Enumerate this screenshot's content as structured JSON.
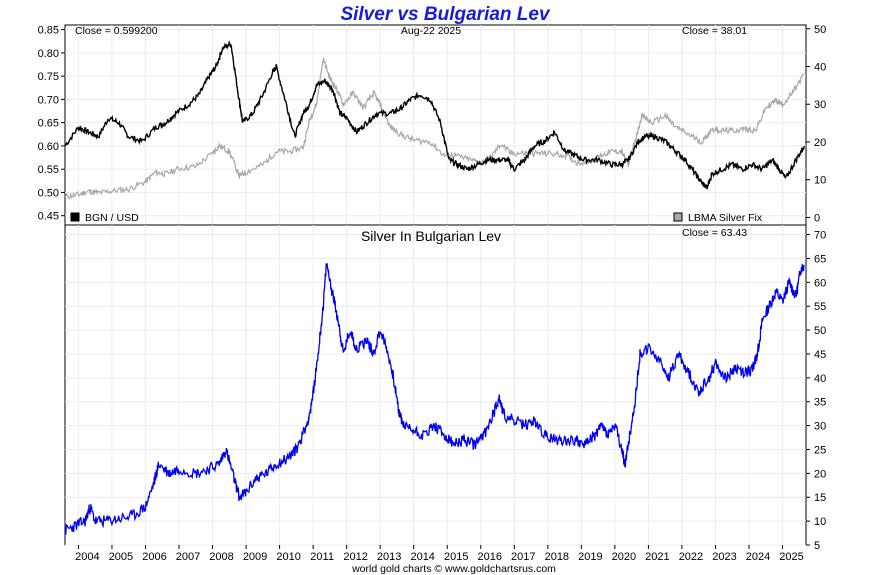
{
  "title": "Silver vs Bulgarian Lev",
  "footer": "world gold charts © www.goldchartsrus.com",
  "colors": {
    "lev": "#000000",
    "silver_usd": "#a8a8a8",
    "silver_bgn": "#0000ee",
    "title": "#1a1adb",
    "grid": "#e8ecf4"
  },
  "chart_data": [
    {
      "type": "line",
      "panel": "top",
      "title": "",
      "date_label": "Aug-22  2025",
      "close_left": "Close = 0.599200",
      "close_right": "Close = 38.01",
      "legend": [
        {
          "label": "BGN / USD",
          "color": "#000000",
          "placement": "bottom-left"
        },
        {
          "label": "LBMA Silver Fix",
          "color": "#a8a8a8",
          "placement": "bottom-right"
        }
      ],
      "left_axis": {
        "ylim": [
          0.43,
          0.86
        ],
        "ticks": [
          "0.85",
          "0.80",
          "0.75",
          "0.70",
          "0.65",
          "0.60",
          "0.55",
          "0.50",
          "0.45"
        ]
      },
      "right_axis": {
        "ylim": [
          -2,
          51
        ],
        "ticks": [
          "50",
          "40",
          "30",
          "20",
          "10",
          "0"
        ]
      },
      "series": [
        {
          "name": "BGN / USD",
          "axis": "left",
          "x": [
            2003.6,
            2004.0,
            2004.3,
            2004.6,
            2004.9,
            2005.2,
            2005.5,
            2005.9,
            2006.3,
            2006.6,
            2006.9,
            2007.3,
            2007.6,
            2007.9,
            2008.1,
            2008.3,
            2008.55,
            2008.75,
            2008.9,
            2009.2,
            2009.5,
            2009.8,
            2009.9,
            2010.2,
            2010.45,
            2010.7,
            2010.9,
            2011.1,
            2011.35,
            2011.6,
            2011.8,
            2012.0,
            2012.3,
            2012.6,
            2012.9,
            2013.3,
            2013.6,
            2013.9,
            2014.2,
            2014.5,
            2014.8,
            2015.05,
            2015.3,
            2015.6,
            2015.9,
            2016.2,
            2016.5,
            2016.8,
            2017.0,
            2017.3,
            2017.6,
            2017.9,
            2018.2,
            2018.5,
            2018.8,
            2019.1,
            2019.5,
            2019.9,
            2020.2,
            2020.4,
            2020.7,
            2020.9,
            2021.2,
            2021.5,
            2021.8,
            2022.1,
            2022.4,
            2022.6,
            2022.75,
            2022.9,
            2023.2,
            2023.5,
            2023.8,
            2024.1,
            2024.4,
            2024.7,
            2024.9,
            2025.1,
            2025.4,
            2025.65
          ],
          "y": [
            0.6,
            0.64,
            0.63,
            0.62,
            0.66,
            0.65,
            0.62,
            0.61,
            0.64,
            0.65,
            0.67,
            0.69,
            0.71,
            0.75,
            0.77,
            0.81,
            0.82,
            0.72,
            0.65,
            0.67,
            0.71,
            0.76,
            0.77,
            0.69,
            0.62,
            0.67,
            0.69,
            0.73,
            0.74,
            0.72,
            0.67,
            0.66,
            0.63,
            0.65,
            0.67,
            0.67,
            0.68,
            0.7,
            0.71,
            0.7,
            0.65,
            0.57,
            0.56,
            0.55,
            0.56,
            0.57,
            0.57,
            0.57,
            0.55,
            0.57,
            0.6,
            0.61,
            0.63,
            0.59,
            0.58,
            0.57,
            0.57,
            0.56,
            0.56,
            0.57,
            0.61,
            0.62,
            0.62,
            0.61,
            0.59,
            0.57,
            0.54,
            0.52,
            0.51,
            0.54,
            0.55,
            0.56,
            0.55,
            0.56,
            0.55,
            0.57,
            0.55,
            0.53,
            0.57,
            0.6
          ]
        },
        {
          "name": "LBMA Silver Fix",
          "axis": "right",
          "x": [
            2003.6,
            2004.0,
            2004.3,
            2004.6,
            2005.0,
            2005.5,
            2006.0,
            2006.3,
            2006.6,
            2007.0,
            2007.5,
            2008.0,
            2008.2,
            2008.5,
            2008.8,
            2009.0,
            2009.5,
            2009.9,
            2010.3,
            2010.7,
            2010.9,
            2011.1,
            2011.3,
            2011.5,
            2011.7,
            2011.9,
            2012.2,
            2012.5,
            2012.8,
            2013.0,
            2013.3,
            2013.6,
            2014.0,
            2014.5,
            2014.9,
            2015.2,
            2015.6,
            2016.0,
            2016.3,
            2016.6,
            2016.9,
            2017.3,
            2017.6,
            2018.0,
            2018.5,
            2018.9,
            2019.3,
            2019.6,
            2019.9,
            2020.2,
            2020.4,
            2020.6,
            2020.8,
            2021.1,
            2021.5,
            2021.8,
            2022.2,
            2022.6,
            2022.9,
            2023.2,
            2023.5,
            2023.9,
            2024.2,
            2024.5,
            2024.8,
            2025.0,
            2025.3,
            2025.65
          ],
          "y": [
            5.5,
            6.0,
            7.0,
            6.5,
            7.0,
            7.5,
            9.5,
            12.0,
            11.5,
            13.0,
            13.5,
            17.0,
            19.0,
            17.5,
            11.0,
            12.0,
            14.0,
            17.5,
            17.5,
            18.5,
            26.0,
            30.0,
            42.0,
            37.0,
            34.0,
            30.0,
            33.0,
            29.0,
            33.0,
            30.0,
            24.0,
            22.0,
            20.5,
            20.0,
            16.5,
            16.5,
            15.5,
            14.5,
            16.0,
            19.5,
            17.0,
            17.0,
            17.0,
            17.0,
            16.5,
            14.5,
            15.0,
            16.5,
            17.5,
            17.5,
            14.0,
            20.0,
            27.0,
            25.0,
            27.0,
            24.0,
            22.0,
            20.0,
            23.5,
            23.0,
            23.0,
            23.5,
            23.0,
            29.0,
            31.0,
            30.0,
            33.0,
            38.0
          ]
        }
      ]
    },
    {
      "type": "line",
      "panel": "bottom",
      "title": "Silver In Bulgarian Lev",
      "close_right": "Close = 63.43",
      "right_axis": {
        "ylim": [
          5,
          72
        ],
        "ticks": [
          "70",
          "65",
          "60",
          "55",
          "50",
          "45",
          "40",
          "35",
          "30",
          "25",
          "20",
          "15",
          "10",
          "5"
        ]
      },
      "x_ticks": [
        "2004",
        "2005",
        "2006",
        "2007",
        "2008",
        "2009",
        "2010",
        "2011",
        "2012",
        "2013",
        "2014",
        "2015",
        "2016",
        "2017",
        "2018",
        "2019",
        "2020",
        "2021",
        "2022",
        "2023",
        "2024",
        "2025"
      ],
      "xlim": [
        2003.6,
        2025.7
      ],
      "series": [
        {
          "name": "Silver In Bulgarian Lev",
          "x": [
            2003.6,
            2003.9,
            2004.2,
            2004.35,
            2004.5,
            2004.8,
            2005.2,
            2005.6,
            2006.0,
            2006.25,
            2006.4,
            2006.7,
            2007.0,
            2007.5,
            2007.9,
            2008.2,
            2008.4,
            2008.6,
            2008.8,
            2009.0,
            2009.3,
            2009.6,
            2009.9,
            2010.2,
            2010.5,
            2010.8,
            2010.95,
            2011.15,
            2011.3,
            2011.4,
            2011.6,
            2011.75,
            2011.9,
            2012.1,
            2012.3,
            2012.6,
            2012.8,
            2013.0,
            2013.2,
            2013.4,
            2013.55,
            2013.7,
            2014.0,
            2014.3,
            2014.6,
            2014.9,
            2015.2,
            2015.5,
            2015.8,
            2016.1,
            2016.4,
            2016.55,
            2016.7,
            2017.0,
            2017.3,
            2017.6,
            2017.9,
            2018.2,
            2018.5,
            2018.8,
            2019.1,
            2019.4,
            2019.6,
            2019.8,
            2020.0,
            2020.2,
            2020.3,
            2020.45,
            2020.6,
            2020.75,
            2021.0,
            2021.3,
            2021.6,
            2021.9,
            2022.2,
            2022.5,
            2022.8,
            2023.0,
            2023.3,
            2023.6,
            2023.9,
            2024.1,
            2024.25,
            2024.4,
            2024.6,
            2024.8,
            2025.0,
            2025.2,
            2025.4,
            2025.55,
            2025.65
          ],
          "y": [
            8.0,
            9.0,
            10.0,
            13.0,
            10.0,
            10.0,
            10.5,
            11.0,
            13.0,
            18.0,
            22.0,
            20.0,
            21.0,
            20.0,
            21.0,
            22.0,
            25.0,
            20.0,
            15.0,
            16.0,
            19.0,
            20.0,
            22.0,
            23.0,
            25.0,
            30.0,
            34.0,
            45.0,
            55.0,
            64.0,
            57.0,
            52.0,
            45.0,
            50.0,
            46.0,
            48.0,
            45.0,
            50.0,
            46.0,
            40.0,
            33.0,
            30.0,
            29.0,
            28.0,
            30.0,
            28.0,
            26.0,
            27.0,
            26.0,
            28.0,
            33.0,
            36.0,
            32.0,
            31.0,
            30.0,
            31.0,
            28.0,
            27.0,
            27.0,
            27.0,
            26.0,
            28.0,
            30.0,
            28.0,
            30.0,
            25.0,
            22.0,
            28.0,
            35.0,
            45.0,
            46.0,
            44.0,
            40.0,
            45.0,
            41.0,
            37.0,
            40.0,
            43.0,
            40.0,
            42.0,
            41.0,
            42.0,
            45.0,
            52.0,
            55.0,
            58.0,
            56.0,
            60.0,
            57.0,
            63.0,
            63.4
          ]
        }
      ]
    }
  ]
}
